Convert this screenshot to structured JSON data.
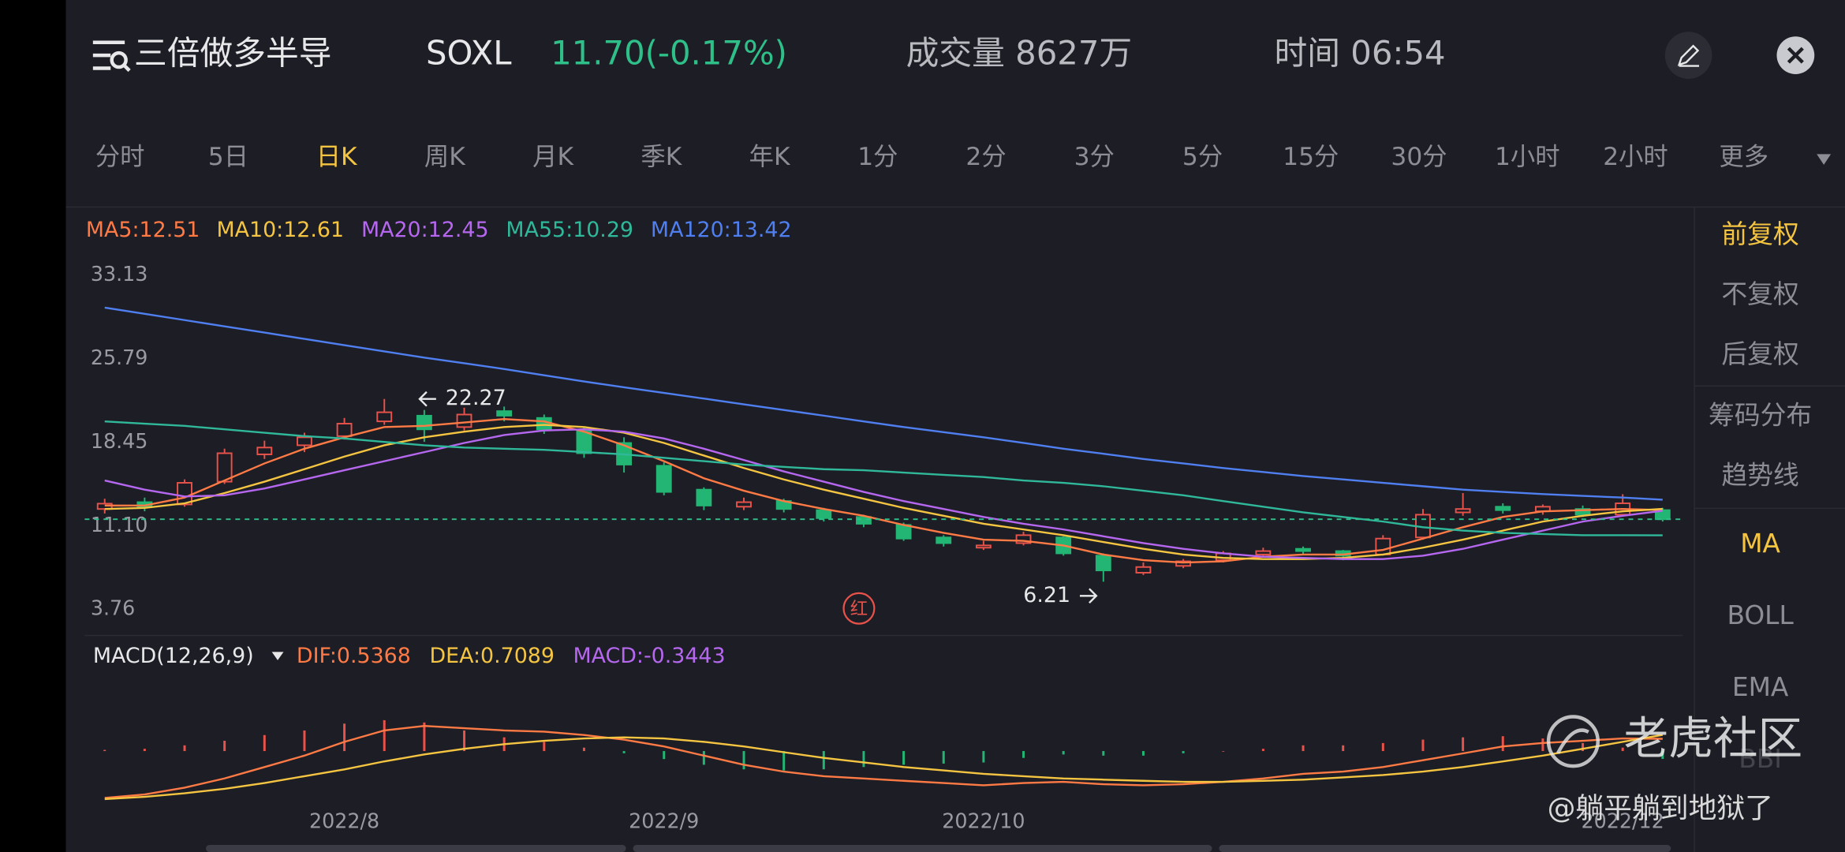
{
  "header": {
    "title": "三倍做多半导",
    "symbol": "SOXL",
    "price": "11.70(-0.17%)",
    "volume": "成交量 8627万",
    "time": "时间 06:54"
  },
  "tabs": [
    {
      "label": "分时"
    },
    {
      "label": "5日"
    },
    {
      "label": "日K",
      "selected": true
    },
    {
      "label": "周K"
    },
    {
      "label": "月K"
    },
    {
      "label": "季K"
    },
    {
      "label": "年K"
    },
    {
      "label": "1分"
    },
    {
      "label": "2分"
    },
    {
      "label": "3分"
    },
    {
      "label": "5分"
    },
    {
      "label": "15分"
    },
    {
      "label": "30分"
    },
    {
      "label": "1小时"
    },
    {
      "label": "2小时"
    },
    {
      "label": "更多"
    }
  ],
  "sidebar": [
    {
      "label": "前复权",
      "selected": true
    },
    {
      "label": "不复权"
    },
    {
      "label": "后复权"
    },
    {
      "label": "筹码分布"
    },
    {
      "label": "趋势线"
    },
    {
      "label": "MA",
      "selected": true
    },
    {
      "label": "BOLL"
    },
    {
      "label": "EMA"
    },
    {
      "label": "BBI"
    }
  ],
  "badge": "红",
  "watermark": {
    "brand": "老虎社区",
    "user": "@躺平躺到地狱了"
  },
  "chart_data": [
    {
      "type": "candlestick",
      "ylim": [
        3.76,
        33.13
      ],
      "yticks": [
        33.13,
        25.79,
        18.45,
        {
          "value": 11.1,
          "label": "11.10"
        },
        3.76
      ],
      "up_color": "#e8524a",
      "down_color": "#22b573",
      "categories": [
        null,
        null,
        null,
        null,
        null,
        null,
        "2022/8",
        null,
        null,
        null,
        null,
        null,
        null,
        null,
        "2022/9",
        null,
        null,
        null,
        null,
        null,
        null,
        null,
        "2022/10",
        null,
        null,
        null,
        null,
        null,
        null,
        null,
        null,
        null,
        null,
        null,
        null,
        null,
        null,
        null,
        "2022/12",
        null
      ],
      "open": [
        12.6,
        13.2,
        13.0,
        15.0,
        17.4,
        18.2,
        19.0,
        20.3,
        20.8,
        19.8,
        21.2,
        20.6,
        19.5,
        18.4,
        16.4,
        14.3,
        12.8,
        13.3,
        12.5,
        11.9,
        11.2,
        10.1,
        9.2,
        9.6,
        10.1,
        8.5,
        7.0,
        7.6,
        8.1,
        8.6,
        9.1,
        8.9,
        8.6,
        10.1,
        12.3,
        12.8,
        12.4,
        12.6,
        12.1,
        12.5
      ],
      "high": [
        13.5,
        13.6,
        15.2,
        17.9,
        18.6,
        19.3,
        20.6,
        22.27,
        21.3,
        21.5,
        21.6,
        20.9,
        19.8,
        18.9,
        16.7,
        14.5,
        13.6,
        13.5,
        12.7,
        12.1,
        11.4,
        10.3,
        9.8,
        10.6,
        10.2,
        8.7,
        7.9,
        8.2,
        8.9,
        9.2,
        9.3,
        9.0,
        10.3,
        12.6,
        14.0,
        13.1,
        13.0,
        12.9,
        13.9,
        12.7
      ],
      "low": [
        12.2,
        12.4,
        12.8,
        14.8,
        17.0,
        17.6,
        18.7,
        20.0,
        18.5,
        19.5,
        20.3,
        19.2,
        17.1,
        15.8,
        13.8,
        12.5,
        12.5,
        12.3,
        11.5,
        11.0,
        9.8,
        9.3,
        9.0,
        9.4,
        8.5,
        6.21,
        6.8,
        7.4,
        7.9,
        8.4,
        8.6,
        8.1,
        8.5,
        9.9,
        12.0,
        12.2,
        12.1,
        11.9,
        12.0,
        11.5
      ],
      "close": [
        13.07,
        12.8,
        14.9,
        17.5,
        18.0,
        18.9,
        20.1,
        21.1,
        19.6,
        20.9,
        20.8,
        19.6,
        17.5,
        16.5,
        14.1,
        12.9,
        13.2,
        12.6,
        11.8,
        11.3,
        10.0,
        9.6,
        9.4,
        10.3,
        8.7,
        7.2,
        7.5,
        8.0,
        8.7,
        8.9,
        8.9,
        8.5,
        10.0,
        12.1,
        12.6,
        12.5,
        12.8,
        12.1,
        13.1,
        11.7
      ],
      "series": [
        {
          "name": "MA5:12.51",
          "color": "#ff7a45",
          "values": [
            12.9,
            12.9,
            13.6,
            15.1,
            16.6,
            17.9,
            18.9,
            19.8,
            19.9,
            20.2,
            20.5,
            20.3,
            19.4,
            18.2,
            16.8,
            15.3,
            14.2,
            13.3,
            12.6,
            12.0,
            11.2,
            10.5,
            9.9,
            9.8,
            9.4,
            8.6,
            8.1,
            7.9,
            8.0,
            8.4,
            8.6,
            8.6,
            9.0,
            10.0,
            11.0,
            11.9,
            12.4,
            12.5,
            12.6,
            12.51
          ]
        },
        {
          "name": "MA10:12.61",
          "color": "#f5c542",
          "values": [
            12.6,
            12.7,
            13.1,
            14.0,
            15.0,
            16.1,
            17.2,
            18.2,
            18.9,
            19.4,
            19.8,
            20.0,
            19.8,
            19.3,
            18.4,
            17.3,
            16.2,
            15.2,
            14.3,
            13.5,
            12.7,
            12.0,
            11.3,
            10.8,
            10.3,
            9.7,
            9.1,
            8.6,
            8.3,
            8.2,
            8.2,
            8.3,
            8.6,
            9.2,
            9.9,
            10.7,
            11.5,
            12.0,
            12.4,
            12.61
          ]
        },
        {
          "name": "MA20:12.45",
          "color": "#b667f0",
          "values": [
            15.1,
            14.3,
            13.7,
            13.8,
            14.4,
            15.2,
            16.0,
            16.8,
            17.6,
            18.4,
            19.1,
            19.5,
            19.6,
            19.4,
            18.8,
            17.9,
            16.9,
            15.9,
            15.0,
            14.1,
            13.3,
            12.6,
            11.9,
            11.3,
            10.8,
            10.2,
            9.6,
            9.1,
            8.7,
            8.4,
            8.3,
            8.2,
            8.2,
            8.5,
            9.1,
            9.9,
            10.7,
            11.5,
            12.0,
            12.45
          ]
        },
        {
          "name": "MA55:10.29",
          "color": "#2fb89a",
          "values": [
            20.3,
            20.1,
            19.9,
            19.6,
            19.3,
            19.0,
            18.8,
            18.5,
            18.2,
            18.0,
            17.9,
            17.8,
            17.6,
            17.4,
            17.1,
            16.8,
            16.5,
            16.3,
            16.1,
            16.0,
            15.8,
            15.6,
            15.4,
            15.1,
            14.9,
            14.6,
            14.2,
            13.8,
            13.3,
            12.8,
            12.3,
            11.9,
            11.5,
            11.0,
            10.7,
            10.5,
            10.4,
            10.3,
            10.3,
            10.29
          ]
        },
        {
          "name": "MA120:13.42",
          "color": "#4f7ff0",
          "values": [
            30.3,
            29.75,
            29.2,
            28.65,
            28.1,
            27.55,
            27.0,
            26.45,
            25.9,
            25.4,
            24.9,
            24.35,
            23.8,
            23.3,
            22.8,
            22.3,
            21.8,
            21.3,
            20.8,
            20.3,
            19.8,
            19.35,
            18.9,
            18.4,
            17.9,
            17.45,
            17.0,
            16.6,
            16.2,
            15.85,
            15.5,
            15.2,
            14.9,
            14.6,
            14.3,
            14.1,
            13.9,
            13.75,
            13.6,
            13.42
          ]
        }
      ]
    },
    {
      "type": "macd",
      "title": "MACD(12,26,9)",
      "series": [
        {
          "name": "DIF:0.5368",
          "color": "#ff7a45",
          "values": [
            -2.05,
            -1.9,
            -1.6,
            -1.2,
            -0.7,
            -0.2,
            0.4,
            0.9,
            1.1,
            1.0,
            0.9,
            0.85,
            0.7,
            0.5,
            0.2,
            -0.2,
            -0.6,
            -0.9,
            -1.1,
            -1.2,
            -1.3,
            -1.4,
            -1.5,
            -1.4,
            -1.35,
            -1.45,
            -1.5,
            -1.45,
            -1.35,
            -1.2,
            -1.0,
            -0.9,
            -0.7,
            -0.4,
            -0.1,
            0.2,
            0.35,
            0.45,
            0.55,
            0.5368
          ]
        },
        {
          "name": "DEA:0.7089",
          "color": "#f5c542",
          "values": [
            -2.1,
            -2.0,
            -1.85,
            -1.65,
            -1.4,
            -1.1,
            -0.8,
            -0.45,
            -0.15,
            0.1,
            0.3,
            0.45,
            0.55,
            0.6,
            0.55,
            0.4,
            0.2,
            -0.05,
            -0.3,
            -0.5,
            -0.7,
            -0.85,
            -1.0,
            -1.1,
            -1.2,
            -1.25,
            -1.3,
            -1.35,
            -1.35,
            -1.3,
            -1.25,
            -1.15,
            -1.05,
            -0.9,
            -0.7,
            -0.45,
            -0.2,
            0.1,
            0.4,
            0.7089
          ]
        }
      ],
      "histogram": {
        "name": "MACD:-0.3443",
        "color": "#b667f0",
        "up_color": "#e8524a",
        "down_color": "#22b573",
        "values": [
          0.05,
          0.1,
          0.25,
          0.45,
          0.7,
          0.9,
          1.2,
          1.35,
          1.25,
          0.9,
          0.6,
          0.4,
          0.15,
          -0.1,
          -0.35,
          -0.6,
          -0.8,
          -0.85,
          -0.8,
          -0.7,
          -0.6,
          -0.55,
          -0.5,
          -0.3,
          -0.15,
          -0.2,
          -0.2,
          -0.1,
          0.0,
          0.1,
          0.25,
          0.25,
          0.35,
          0.5,
          0.6,
          0.65,
          0.55,
          0.35,
          0.15,
          -0.3443
        ]
      }
    }
  ]
}
